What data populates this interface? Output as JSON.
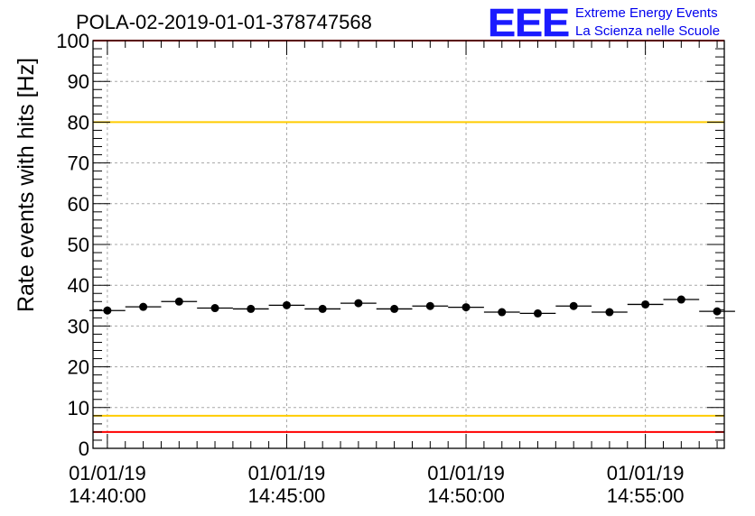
{
  "chart_data": {
    "type": "scatter",
    "title": "POLA-02-2019-01-01-378747568",
    "xlabel": "",
    "ylabel": "Rate events with hits [Hz]",
    "ylim": [
      0,
      100
    ],
    "y_ticks": [
      0,
      10,
      20,
      30,
      40,
      50,
      60,
      70,
      80,
      90,
      100
    ],
    "x_range_minutes": [
      -0.4,
      17.2
    ],
    "x_ticks": [
      {
        "date": "01/01/19",
        "time": "14:40:00",
        "minute": 0
      },
      {
        "date": "01/01/19",
        "time": "14:45:00",
        "minute": 5
      },
      {
        "date": "01/01/19",
        "time": "14:50:00",
        "minute": 10
      },
      {
        "date": "01/01/19",
        "time": "14:55:00",
        "minute": 15
      }
    ],
    "bin_width_minutes": 1,
    "grid": true,
    "series": [
      {
        "x_minutes": [
          0,
          1,
          2,
          3,
          4,
          5,
          6,
          7,
          8,
          9,
          10,
          11,
          12,
          13,
          14,
          15,
          16,
          17
        ],
        "values": [
          33.8,
          34.7,
          36.0,
          34.4,
          34.2,
          35.1,
          34.2,
          35.6,
          34.2,
          34.9,
          34.6,
          33.4,
          33.1,
          34.9,
          33.4,
          35.3,
          36.5,
          33.6
        ],
        "color": "#000000"
      }
    ],
    "reference_lines": [
      {
        "y": 100,
        "color": "#ff0000"
      },
      {
        "y": 80,
        "color": "#ffcc00"
      },
      {
        "y": 8,
        "color": "#ffcc00"
      },
      {
        "y": 4,
        "color": "#ff0000"
      }
    ]
  },
  "logo": {
    "mark": "EEE",
    "line1": "Extreme Energy Events",
    "line2": "La Scienza nelle Scuole",
    "color": "#0000ee"
  }
}
